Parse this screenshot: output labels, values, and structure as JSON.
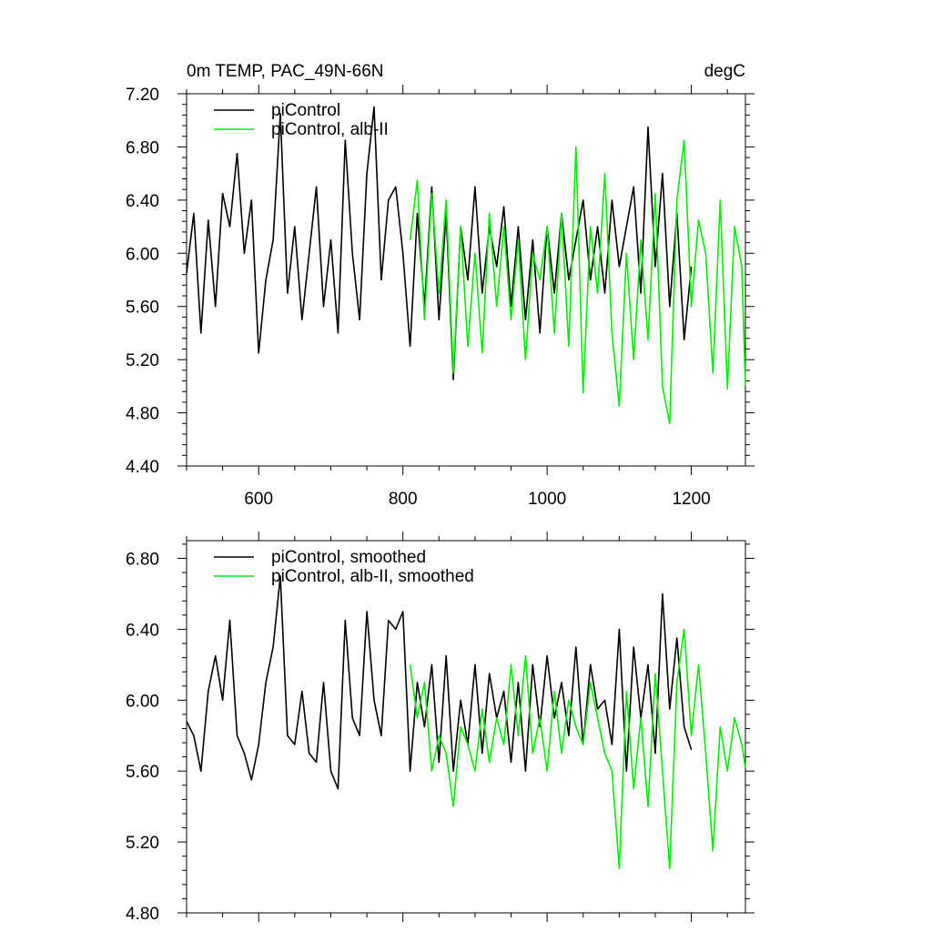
{
  "chart_data": [
    {
      "type": "line",
      "title_left": "0m TEMP, PAC_49N-66N",
      "title_right": "degC",
      "xlim": [
        500,
        1275
      ],
      "ylim": [
        4.4,
        7.2
      ],
      "xticks": [
        600,
        800,
        1000,
        1200
      ],
      "xtick_labels": [
        "600",
        "800",
        "1000",
        "1200"
      ],
      "yticks": [
        4.4,
        4.8,
        5.2,
        5.6,
        6.0,
        6.4,
        6.8,
        7.2
      ],
      "ytick_labels": [
        "4.40",
        "4.80",
        "5.20",
        "5.60",
        "6.00",
        "6.40",
        "6.80",
        "7.20"
      ],
      "grid": false,
      "legend_position": "top-left",
      "series": [
        {
          "name": "piControl",
          "color": "#000000",
          "x": [
            500,
            510,
            520,
            530,
            540,
            550,
            560,
            570,
            580,
            590,
            600,
            610,
            620,
            630,
            640,
            650,
            660,
            670,
            680,
            690,
            700,
            710,
            720,
            730,
            740,
            750,
            760,
            770,
            780,
            790,
            800,
            810,
            820,
            830,
            840,
            850,
            860,
            870,
            880,
            890,
            900,
            910,
            920,
            930,
            940,
            950,
            960,
            970,
            980,
            990,
            1000,
            1010,
            1020,
            1030,
            1040,
            1050,
            1060,
            1070,
            1080,
            1090,
            1100,
            1110,
            1120,
            1130,
            1140,
            1150,
            1160,
            1170,
            1180,
            1190,
            1200
          ],
          "y": [
            5.85,
            6.3,
            5.4,
            6.25,
            5.6,
            6.45,
            6.2,
            6.75,
            6.0,
            6.4,
            5.25,
            5.8,
            6.1,
            7.05,
            5.7,
            6.2,
            5.5,
            6.0,
            6.5,
            5.6,
            6.1,
            5.4,
            6.85,
            6.0,
            5.5,
            6.6,
            7.1,
            5.8,
            6.4,
            6.5,
            6.0,
            5.3,
            6.3,
            5.6,
            6.5,
            5.5,
            6.3,
            5.05,
            6.2,
            5.8,
            6.5,
            5.7,
            6.2,
            5.9,
            6.35,
            5.6,
            6.2,
            5.5,
            6.1,
            5.4,
            6.2,
            5.7,
            6.3,
            5.8,
            6.1,
            6.4,
            5.8,
            6.2,
            5.7,
            6.4,
            5.9,
            6.2,
            6.5,
            5.7,
            6.95,
            5.9,
            6.6,
            5.6,
            6.3,
            5.35,
            5.9
          ]
        },
        {
          "name": "piControl, alb-II",
          "color": "#00ee00",
          "x": [
            810,
            820,
            830,
            840,
            850,
            860,
            870,
            880,
            890,
            900,
            910,
            920,
            930,
            940,
            950,
            960,
            970,
            980,
            990,
            1000,
            1010,
            1020,
            1030,
            1040,
            1050,
            1060,
            1070,
            1080,
            1090,
            1100,
            1110,
            1120,
            1130,
            1140,
            1150,
            1160,
            1170,
            1180,
            1190,
            1200,
            1210,
            1220,
            1230,
            1240,
            1250,
            1260,
            1270,
            1275
          ],
          "y": [
            6.1,
            6.55,
            5.5,
            6.45,
            5.7,
            6.4,
            5.1,
            6.2,
            5.3,
            6.0,
            5.25,
            6.3,
            5.6,
            6.2,
            5.5,
            6.1,
            5.2,
            6.0,
            5.8,
            6.2,
            5.4,
            6.3,
            5.3,
            6.8,
            4.95,
            6.2,
            5.7,
            6.6,
            5.4,
            4.85,
            6.0,
            5.2,
            6.1,
            5.35,
            6.45,
            5.0,
            4.72,
            6.4,
            6.85,
            5.6,
            6.25,
            6.0,
            5.1,
            6.4,
            4.98,
            6.2,
            5.9,
            5.0
          ]
        }
      ]
    },
    {
      "type": "line",
      "xlim": [
        500,
        1275
      ],
      "ylim": [
        4.8,
        6.9
      ],
      "xticks": [
        600,
        800,
        1000,
        1200
      ],
      "yticks": [
        4.8,
        5.2,
        5.6,
        6.0,
        6.4,
        6.8
      ],
      "ytick_labels": [
        "4.80",
        "5.20",
        "5.60",
        "6.00",
        "6.40",
        "6.80"
      ],
      "grid": false,
      "legend_position": "top-left",
      "series": [
        {
          "name": "piControl, smoothed",
          "color": "#000000",
          "x": [
            500,
            510,
            520,
            530,
            540,
            550,
            560,
            570,
            580,
            590,
            600,
            610,
            620,
            630,
            640,
            650,
            660,
            670,
            680,
            690,
            700,
            710,
            720,
            730,
            740,
            750,
            760,
            770,
            780,
            790,
            800,
            810,
            820,
            830,
            840,
            850,
            860,
            870,
            880,
            890,
            900,
            910,
            920,
            930,
            940,
            950,
            960,
            970,
            980,
            990,
            1000,
            1010,
            1020,
            1030,
            1040,
            1050,
            1060,
            1070,
            1080,
            1090,
            1100,
            1110,
            1120,
            1130,
            1140,
            1150,
            1160,
            1170,
            1180,
            1190,
            1200
          ],
          "y": [
            5.88,
            5.8,
            5.6,
            6.05,
            6.25,
            6.0,
            6.45,
            5.8,
            5.7,
            5.55,
            5.75,
            6.1,
            6.3,
            6.7,
            5.8,
            5.75,
            6.05,
            5.7,
            5.65,
            6.1,
            5.6,
            5.5,
            6.45,
            5.9,
            5.8,
            6.5,
            6.0,
            5.8,
            6.45,
            6.4,
            6.5,
            5.6,
            6.1,
            5.85,
            6.2,
            5.65,
            6.25,
            5.6,
            6.0,
            5.75,
            6.2,
            5.7,
            6.15,
            5.9,
            6.05,
            5.65,
            6.1,
            5.6,
            6.2,
            5.85,
            6.25,
            5.9,
            6.1,
            5.8,
            6.3,
            5.75,
            6.2,
            5.95,
            6.0,
            5.75,
            6.4,
            5.6,
            6.3,
            5.9,
            6.2,
            5.7,
            6.6,
            5.95,
            6.35,
            5.85,
            5.72
          ]
        },
        {
          "name": "piControl, alb-II, smoothed",
          "color": "#00ee00",
          "x": [
            810,
            820,
            830,
            840,
            850,
            860,
            870,
            880,
            890,
            900,
            910,
            920,
            930,
            940,
            950,
            960,
            970,
            980,
            990,
            1000,
            1010,
            1020,
            1030,
            1040,
            1050,
            1060,
            1070,
            1080,
            1090,
            1100,
            1110,
            1120,
            1130,
            1140,
            1150,
            1160,
            1170,
            1180,
            1190,
            1200,
            1210,
            1220,
            1230,
            1240,
            1250,
            1260,
            1270,
            1275
          ],
          "y": [
            6.2,
            5.9,
            6.1,
            5.6,
            5.8,
            5.7,
            5.4,
            5.85,
            5.75,
            5.6,
            5.95,
            5.65,
            5.9,
            5.75,
            6.2,
            5.8,
            6.25,
            5.7,
            5.9,
            5.6,
            6.05,
            5.7,
            6.0,
            5.85,
            5.75,
            6.1,
            5.9,
            5.7,
            5.6,
            5.05,
            6.05,
            5.5,
            5.9,
            5.4,
            6.15,
            5.6,
            5.05,
            6.1,
            6.4,
            5.8,
            6.2,
            5.7,
            5.15,
            5.85,
            5.6,
            5.9,
            5.75,
            5.62
          ]
        }
      ]
    }
  ]
}
